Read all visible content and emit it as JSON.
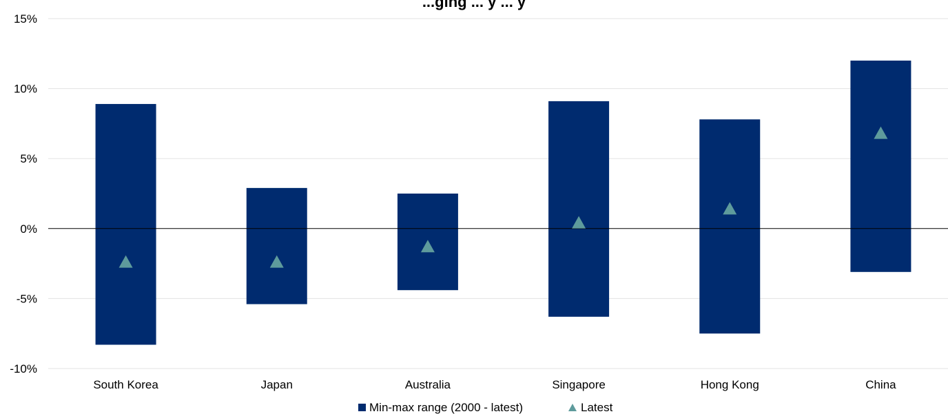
{
  "chart_data": {
    "type": "bar",
    "title": "...ging ... y ... y",
    "xlabel": "",
    "ylabel": "",
    "ylim": [
      -10,
      15
    ],
    "yticks": [
      15,
      10,
      5,
      0,
      -5,
      -10
    ],
    "ytick_labels": [
      "15%",
      "10%",
      "5%",
      "0%",
      "-5%",
      "-10%"
    ],
    "categories": [
      "South Korea",
      "Japan",
      "Australia",
      "Singapore",
      "Hong Kong",
      "China"
    ],
    "series": [
      {
        "name": "Min-max range (2000 - latest)",
        "kind": "range",
        "min": [
          -8.3,
          -5.4,
          -4.4,
          -6.3,
          -7.5,
          -3.1
        ],
        "max": [
          8.9,
          2.9,
          2.5,
          9.1,
          7.8,
          12.0
        ]
      },
      {
        "name": "Latest",
        "kind": "marker",
        "values": [
          -2.4,
          -2.4,
          -1.3,
          0.4,
          1.4,
          6.8
        ]
      }
    ],
    "grid": true,
    "legend_position": "bottom",
    "colors": {
      "range": "#002B6F",
      "latest": "#5E9B9C",
      "grid": "#E3E3E3",
      "zero": "#000000"
    }
  }
}
